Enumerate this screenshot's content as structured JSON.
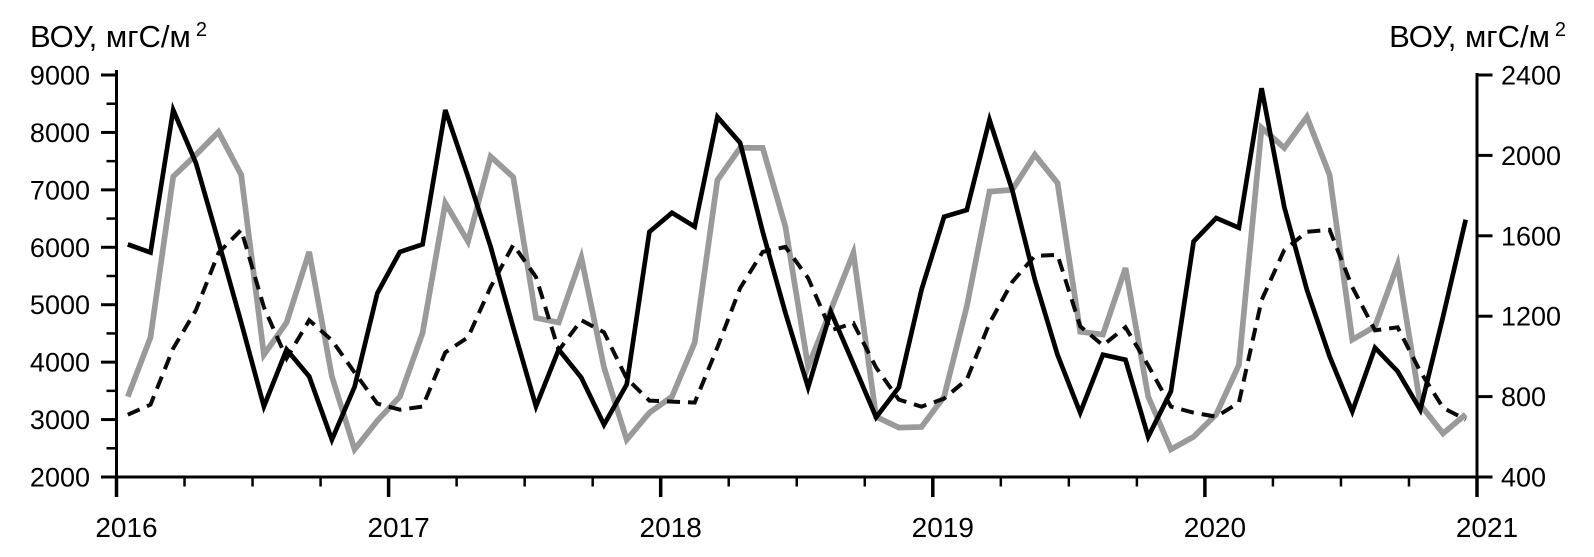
{
  "chart_data": {
    "type": "line",
    "title_left": {
      "text": "ВОУ, мгС/м",
      "sup": "2"
    },
    "title_right": {
      "text": "ВОУ, мгС/м",
      "sup": "2"
    },
    "x_axis": {
      "year_labels": [
        "2016",
        "2017",
        "2018",
        "2019",
        "2020",
        "2021"
      ],
      "minor_ticks_per_year": 4,
      "points_per_year": 12,
      "start_year": 2016
    },
    "y_left": {
      "min": 2000,
      "max": 9000,
      "major_step": 1000,
      "minor_step": 500,
      "tick_labels": [
        "2000",
        "3000",
        "4000",
        "5000",
        "6000",
        "7000",
        "8000",
        "9000"
      ]
    },
    "y_right": {
      "min": 400,
      "max": 2400,
      "major_step": 400,
      "tick_labels": [
        "400",
        "800",
        "1200",
        "1600",
        "2000",
        "2400"
      ]
    },
    "grid": "off",
    "legend": "none",
    "colors": {
      "black_line": "#000000",
      "gray_line": "#9a9a9a",
      "dashed_line": "#0a0a0a",
      "axis": "#000000"
    },
    "series": [
      {
        "name": "gray-solid",
        "axis": "left",
        "style": "solid",
        "color": "#9a9a9a",
        "width": 5.7,
        "values": [
          3400,
          4430,
          7230,
          7610,
          8010,
          7260,
          4130,
          4690,
          5920,
          3750,
          2480,
          2980,
          3400,
          4510,
          6770,
          6100,
          7580,
          7220,
          4770,
          4690,
          5820,
          3910,
          2650,
          3120,
          3400,
          4340,
          7170,
          7730,
          7730,
          6360,
          3920,
          4910,
          5900,
          3050,
          2860,
          2870,
          3400,
          4970,
          6970,
          7000,
          7610,
          7120,
          4530,
          4480,
          5640,
          3400,
          2480,
          2700,
          3090,
          3950,
          8080,
          7730,
          8270,
          7260,
          4390,
          4620,
          5700,
          3260,
          2760,
          3090
        ]
      },
      {
        "name": "black-dashed",
        "axis": "right",
        "style": "dashed",
        "color": "#0a0a0a",
        "width": 4,
        "values": [
          710,
          760,
          1040,
          1230,
          1515,
          1630,
          1245,
          990,
          1180,
          1080,
          920,
          765,
          735,
          750,
          1020,
          1095,
          1345,
          1555,
          1395,
          1030,
          1180,
          1120,
          890,
          780,
          775,
          770,
          1045,
          1340,
          1520,
          1545,
          1390,
          1130,
          1165,
          945,
          785,
          750,
          790,
          885,
          1165,
          1370,
          1500,
          1505,
          1150,
          1055,
          1145,
          955,
          750,
          720,
          700,
          770,
          1280,
          1530,
          1620,
          1630,
          1345,
          1130,
          1145,
          925,
          745,
          685
        ]
      },
      {
        "name": "black-solid",
        "axis": "left",
        "style": "solid",
        "color": "#000000",
        "width": 4.7,
        "values": [
          6050,
          5910,
          8390,
          7470,
          6100,
          4690,
          3230,
          4220,
          3750,
          2650,
          3570,
          5200,
          5920,
          6050,
          8390,
          7230,
          6010,
          4600,
          3230,
          4220,
          3730,
          2910,
          3610,
          6270,
          6600,
          6360,
          8270,
          7820,
          6270,
          4860,
          3560,
          4880,
          3970,
          3040,
          3560,
          5260,
          6530,
          6650,
          8220,
          7000,
          5440,
          4130,
          3120,
          4130,
          4040,
          2700,
          3490,
          6100,
          6510,
          6340,
          8770,
          6700,
          5260,
          4100,
          3140,
          4250,
          3840,
          3170,
          4790,
          6480
        ]
      }
    ]
  }
}
